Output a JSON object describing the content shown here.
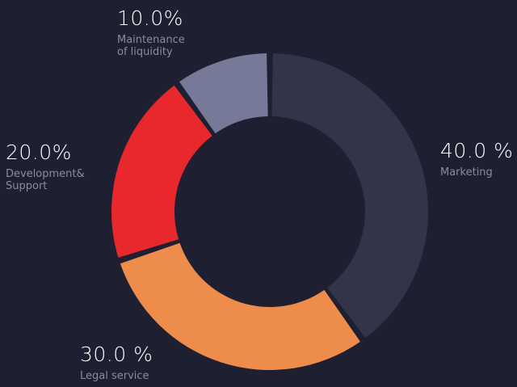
{
  "chart_data": {
    "type": "pie",
    "donut": true,
    "slices": [
      {
        "label": "Marketing",
        "value": 40.0,
        "value_text": "40.0 %",
        "color": "#33344a"
      },
      {
        "label": "Legal service",
        "value": 30.0,
        "value_text": "30.0 %",
        "color": "#ee8d4b"
      },
      {
        "label": "Development&\nSupport",
        "value": 20.0,
        "value_text": "20.0%",
        "color": "#e8282c"
      },
      {
        "label": "Maintenance\nof liquidity",
        "value": 10.0,
        "value_text": "10.0%",
        "color": "#767997"
      }
    ]
  },
  "colors": {
    "background": "#1e2032",
    "value_text": "#ffffff",
    "label_text": "#8a8c9c"
  }
}
